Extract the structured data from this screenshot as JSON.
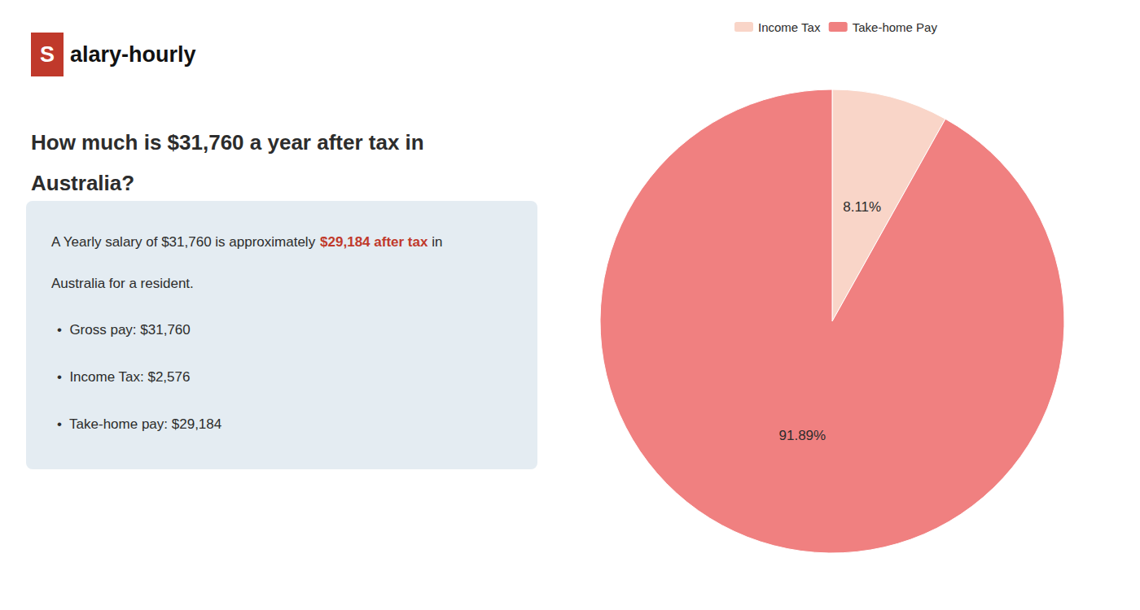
{
  "chart_data": {
    "type": "pie",
    "title": "How much is $31,760 a year after tax in\nAustralia?",
    "annotations": [
      "S",
      "alary-hourly",
      "A Yearly salary of $31,760 is approximately ",
      "$29,184 after tax",
      " in",
      "Australia for a resident.",
      "•  Gross pay: $31,760",
      "•  Income Tax: $2,576",
      "•  Take-home pay: $29,184"
    ],
    "categories": [
      "Income Tax",
      "Take-home Pay"
    ],
    "values": [
      8.11,
      91.89
    ],
    "value_labels": [
      "8.11%",
      "91.89%"
    ],
    "colors": [
      "#f9d5c8",
      "#f08080"
    ],
    "data_labels": true,
    "legend": "top"
  }
}
